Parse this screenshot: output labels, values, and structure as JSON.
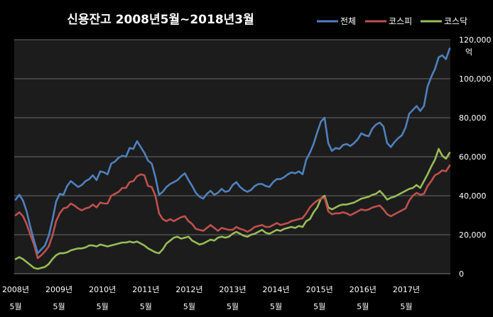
{
  "chart_data": {
    "type": "line",
    "title": "신용잔고 2008년5월~2018년3월",
    "ylabel": "억",
    "ylim": [
      0,
      120000
    ],
    "yticks": [
      "0",
      "20,000",
      "40,000",
      "60,000",
      "80,000",
      "100,000",
      "120,000"
    ],
    "yunit": "억",
    "xticks": [
      {
        "year": "2008년",
        "month": "5월"
      },
      {
        "year": "2009년",
        "month": "5월"
      },
      {
        "year": "2010년",
        "month": "5월"
      },
      {
        "year": "2011년",
        "month": "5월"
      },
      {
        "year": "2012년",
        "month": "5월"
      },
      {
        "year": "2013년",
        "month": "5월"
      },
      {
        "year": "2014년",
        "month": "5월"
      },
      {
        "year": "2015년",
        "month": "5월"
      },
      {
        "year": "2016년",
        "month": "5월"
      },
      {
        "year": "2017년",
        "month": "5월"
      }
    ],
    "x": [
      "2008-05",
      "2008-06",
      "2008-07",
      "2008-08",
      "2008-09",
      "2008-10",
      "2008-11",
      "2008-12",
      "2009-01",
      "2009-02",
      "2009-03",
      "2009-04",
      "2009-05",
      "2009-06",
      "2009-07",
      "2009-08",
      "2009-09",
      "2009-10",
      "2009-11",
      "2009-12",
      "2010-01",
      "2010-02",
      "2010-03",
      "2010-04",
      "2010-05",
      "2010-06",
      "2010-07",
      "2010-08",
      "2010-09",
      "2010-10",
      "2010-11",
      "2010-12",
      "2011-01",
      "2011-02",
      "2011-03",
      "2011-04",
      "2011-05",
      "2011-06",
      "2011-07",
      "2011-08",
      "2011-09",
      "2011-10",
      "2011-11",
      "2011-12",
      "2012-01",
      "2012-02",
      "2012-03",
      "2012-04",
      "2012-05",
      "2012-06",
      "2012-07",
      "2012-08",
      "2012-09",
      "2012-10",
      "2012-11",
      "2012-12",
      "2013-01",
      "2013-02",
      "2013-03",
      "2013-04",
      "2013-05",
      "2013-06",
      "2013-07",
      "2013-08",
      "2013-09",
      "2013-10",
      "2013-11",
      "2013-12",
      "2014-01",
      "2014-02",
      "2014-03",
      "2014-04",
      "2014-05",
      "2014-06",
      "2014-07",
      "2014-08",
      "2014-09",
      "2014-10",
      "2014-11",
      "2014-12",
      "2015-01",
      "2015-02",
      "2015-03",
      "2015-04",
      "2015-05",
      "2015-06",
      "2015-07",
      "2015-08",
      "2015-09",
      "2015-10",
      "2015-11",
      "2015-12",
      "2016-01",
      "2016-02",
      "2016-03",
      "2016-04",
      "2016-05",
      "2016-06",
      "2016-07",
      "2016-08",
      "2016-09",
      "2016-10",
      "2016-11",
      "2016-12",
      "2017-01",
      "2017-02",
      "2017-03",
      "2017-04",
      "2017-05",
      "2017-06",
      "2017-07",
      "2017-08",
      "2017-09",
      "2017-10",
      "2017-11",
      "2017-12",
      "2018-01",
      "2018-02",
      "2018-03"
    ],
    "series": [
      {
        "name": "전체",
        "color": "#4f81bd",
        "values": [
          38000,
          40500,
          37500,
          32000,
          24000,
          17000,
          10500,
          12500,
          14500,
          19500,
          27500,
          37000,
          41000,
          40500,
          45000,
          47500,
          46000,
          44500,
          45500,
          47500,
          48500,
          50500,
          48000,
          52500,
          52000,
          51000,
          56500,
          57500,
          59500,
          60500,
          60000,
          64500,
          64000,
          68000,
          65000,
          62000,
          58000,
          56500,
          49500,
          40500,
          42000,
          44500,
          46000,
          47000,
          48000,
          50000,
          51500,
          48000,
          45000,
          41500,
          39500,
          38500,
          41000,
          42500,
          40500,
          41500,
          43500,
          42000,
          42500,
          45500,
          47000,
          44500,
          43000,
          42000,
          43000,
          45000,
          46000,
          46000,
          45000,
          44500,
          47000,
          48500,
          48500,
          49500,
          51000,
          52000,
          51500,
          52500,
          51000,
          58500,
          62000,
          66500,
          72500,
          78000,
          80000,
          67000,
          63000,
          64500,
          64000,
          66000,
          66500,
          65500,
          67000,
          69000,
          72000,
          71000,
          70500,
          74500,
          76500,
          77500,
          75500,
          67000,
          65000,
          67500,
          69500,
          71000,
          75000,
          82000,
          84000,
          86000,
          83500,
          86000,
          96000,
          101000,
          105000,
          111000,
          112000,
          110000,
          115500
        ]
      },
      {
        "name": "코스피",
        "color": "#c0504d",
        "values": [
          30000,
          31500,
          29500,
          25500,
          20000,
          15000,
          8000,
          9500,
          11500,
          14000,
          19500,
          27000,
          31000,
          33500,
          34000,
          36000,
          35000,
          33500,
          32500,
          33500,
          34000,
          35500,
          34000,
          36500,
          36000,
          36000,
          40000,
          41000,
          42000,
          44000,
          44000,
          47000,
          47500,
          50000,
          51000,
          50500,
          45000,
          44500,
          40000,
          31000,
          28000,
          27000,
          28000,
          27000,
          28000,
          29000,
          29500,
          27000,
          25500,
          23000,
          22500,
          22000,
          23500,
          25000,
          23500,
          22000,
          23500,
          23000,
          22500,
          22500,
          24000,
          23000,
          22500,
          21500,
          22500,
          24000,
          24500,
          25000,
          24000,
          24000,
          25000,
          26000,
          25000,
          25500,
          26000,
          27000,
          27500,
          28000,
          28500,
          31000,
          34000,
          36000,
          37500,
          38500,
          39000,
          32000,
          30500,
          31000,
          31000,
          31500,
          31000,
          30000,
          31000,
          32000,
          33000,
          32500,
          33000,
          34000,
          34500,
          35000,
          33000,
          30500,
          29500,
          30500,
          31500,
          32500,
          33500,
          37500,
          40000,
          41500,
          40500,
          41000,
          45000,
          47500,
          50500,
          51500,
          53000,
          52500,
          55500
        ]
      },
      {
        "name": "코스닥",
        "color": "#9bbb59",
        "values": [
          7500,
          8500,
          7500,
          6000,
          4500,
          3000,
          2500,
          3000,
          3500,
          5000,
          7500,
          9500,
          10500,
          10500,
          11000,
          12000,
          12500,
          13000,
          13000,
          13500,
          14500,
          14500,
          14000,
          15000,
          14500,
          14000,
          14500,
          15000,
          15500,
          16000,
          16000,
          16500,
          16000,
          16500,
          15500,
          14500,
          13000,
          12000,
          11000,
          10500,
          12500,
          15500,
          17000,
          18500,
          19000,
          18000,
          18500,
          19000,
          17000,
          16000,
          15000,
          15500,
          16500,
          17500,
          17000,
          18500,
          19000,
          18500,
          19000,
          20500,
          21500,
          20500,
          19500,
          19000,
          20000,
          20500,
          21500,
          22500,
          21000,
          20500,
          21500,
          22500,
          22000,
          23000,
          23500,
          24000,
          23500,
          24500,
          24000,
          27000,
          28000,
          31500,
          34000,
          38500,
          40000,
          34000,
          33000,
          34000,
          35000,
          35500,
          35500,
          36000,
          36500,
          37500,
          38500,
          39000,
          39500,
          40500,
          41000,
          42500,
          40500,
          38000,
          39000,
          39500,
          40500,
          41500,
          42500,
          43500,
          44000,
          45500,
          44000,
          47500,
          51000,
          55000,
          58500,
          64000,
          60500,
          59000,
          62000
        ]
      }
    ],
    "legend": "top-right",
    "grid": true
  }
}
